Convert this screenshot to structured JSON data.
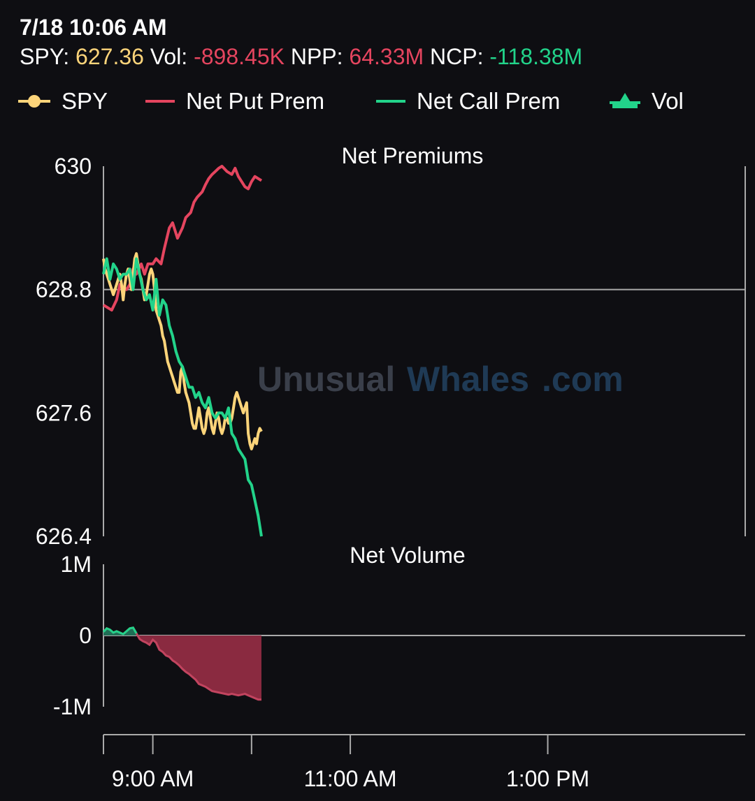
{
  "header": {
    "timestamp": "7/18 10:06 AM",
    "spy_label": "SPY:",
    "spy_value": "627.36",
    "vol_label": "Vol:",
    "vol_value": "-898.45K",
    "npp_label": "NPP:",
    "npp_value": "64.33M",
    "ncp_label": "NCP:",
    "ncp_value": "-118.38M"
  },
  "legend": [
    {
      "name": "SPY",
      "color": "#fcd47a",
      "icon": "dot-line"
    },
    {
      "name": "Net Put Prem",
      "color": "#e5455f",
      "icon": "line"
    },
    {
      "name": "Net Call Prem",
      "color": "#22d38a",
      "icon": "line"
    },
    {
      "name": "Vol",
      "color": "#22d38a",
      "icon": "triangle-area"
    }
  ],
  "watermark": {
    "part1": "Unusual",
    "part2": "Whales",
    "part3": ".com"
  },
  "colors": {
    "spy": "#fcd47a",
    "put": "#e5455f",
    "call": "#22d38a",
    "vol_neg": "#8a2a40",
    "vol_pos": "#1f6e55",
    "axis": "#aaaaaa"
  },
  "chart_data": [
    {
      "type": "line",
      "title": "Net Premiums",
      "ylim": [
        626.4,
        630
      ],
      "yticks": [
        "630",
        "628.8",
        "627.6",
        "626.4"
      ],
      "x_range_minutes": [
        510,
        900
      ],
      "xlabel": "",
      "ylabel": "",
      "reference_line": 628.8,
      "series": [
        {
          "name": "SPY",
          "x": [
            510,
            511,
            512,
            513,
            514,
            515,
            516,
            517,
            518,
            519,
            520,
            521,
            522,
            523,
            524,
            525,
            526,
            527,
            528,
            529,
            530,
            531,
            532,
            533,
            534,
            535,
            536,
            537,
            538,
            539,
            540,
            541,
            542,
            543,
            544,
            545,
            546,
            547,
            548,
            549,
            550,
            551,
            552,
            553,
            554,
            555,
            556,
            557,
            558,
            559,
            560,
            561,
            562,
            563,
            564,
            565,
            566,
            567,
            568,
            569,
            570,
            571,
            572,
            573,
            574,
            575,
            576,
            577,
            578,
            579,
            580,
            581,
            582,
            583,
            584,
            585,
            586,
            587,
            588,
            589,
            590,
            591,
            592,
            593,
            594,
            595,
            596,
            597,
            598,
            599,
            600,
            601,
            602,
            603,
            604,
            605,
            606
          ],
          "y": [
            629.1,
            629.0,
            628.95,
            628.9,
            628.85,
            628.8,
            628.75,
            628.8,
            628.85,
            628.9,
            628.95,
            628.85,
            628.7,
            628.85,
            628.95,
            629.0,
            628.9,
            628.8,
            628.95,
            629.1,
            629.15,
            629.05,
            628.95,
            628.9,
            628.8,
            628.7,
            628.75,
            628.85,
            628.95,
            629.0,
            628.95,
            628.8,
            628.6,
            628.55,
            628.5,
            628.45,
            628.35,
            628.3,
            628.2,
            628.1,
            628.05,
            628.0,
            627.95,
            627.9,
            627.85,
            627.8,
            627.8,
            628.0,
            628.05,
            627.9,
            627.8,
            627.75,
            627.7,
            627.6,
            627.5,
            627.45,
            627.45,
            627.55,
            627.65,
            627.55,
            627.45,
            627.4,
            627.45,
            627.6,
            627.65,
            627.55,
            627.45,
            627.4,
            627.5,
            627.6,
            627.55,
            627.45,
            627.4,
            627.45,
            627.55,
            627.55,
            627.5,
            627.5,
            627.55,
            627.65,
            627.75,
            627.8,
            627.75,
            627.7,
            627.65,
            627.6,
            627.65,
            627.7,
            627.4,
            627.3,
            627.25,
            627.3,
            627.35,
            627.3,
            627.4,
            627.45,
            627.42
          ]
        },
        {
          "name": "Net Put Prem",
          "x": [
            510,
            515,
            518,
            520,
            524,
            526,
            528,
            530,
            533,
            535,
            537,
            540,
            542,
            545,
            547,
            550,
            552,
            555,
            558,
            560,
            563,
            565,
            567,
            570,
            572,
            574,
            576,
            578,
            580,
            582,
            585,
            588,
            590,
            592,
            594,
            596,
            598,
            600,
            602,
            604,
            606
          ],
          "y": [
            628.65,
            628.6,
            628.7,
            628.85,
            628.8,
            628.85,
            629.0,
            628.95,
            629.05,
            628.95,
            629.05,
            629.05,
            629.1,
            629.05,
            629.2,
            629.4,
            629.45,
            629.3,
            629.4,
            629.5,
            629.55,
            629.65,
            629.7,
            629.75,
            629.82,
            629.88,
            629.92,
            629.95,
            629.98,
            630.0,
            629.95,
            629.92,
            629.98,
            629.9,
            629.85,
            629.8,
            629.78,
            629.85,
            629.9,
            629.88,
            629.86
          ]
        },
        {
          "name": "Net Call Prem",
          "x": [
            510,
            512,
            514,
            516,
            518,
            520,
            522,
            524,
            526,
            528,
            530,
            532,
            534,
            536,
            538,
            540,
            542,
            544,
            546,
            548,
            550,
            552,
            554,
            556,
            558,
            560,
            562,
            564,
            566,
            568,
            570,
            572,
            574,
            576,
            578,
            580,
            582,
            584,
            586,
            588,
            590,
            592,
            594,
            596,
            598,
            600,
            602,
            604,
            606
          ],
          "y": [
            628.95,
            629.1,
            628.9,
            629.05,
            629.0,
            628.9,
            628.95,
            628.95,
            629.0,
            628.8,
            629.1,
            628.95,
            628.8,
            628.7,
            628.75,
            628.6,
            628.9,
            628.55,
            628.7,
            628.65,
            628.45,
            628.35,
            628.2,
            628.1,
            628.05,
            627.95,
            627.85,
            627.85,
            627.75,
            627.8,
            627.7,
            627.65,
            627.75,
            627.6,
            627.55,
            627.6,
            627.6,
            627.55,
            627.65,
            627.4,
            627.35,
            627.25,
            627.2,
            627.15,
            626.95,
            626.9,
            626.75,
            626.6,
            626.4
          ]
        }
      ]
    },
    {
      "type": "area",
      "title": "Net Volume",
      "ylim": [
        -1000000,
        1000000
      ],
      "yticks": [
        "1M",
        "0",
        "-1M"
      ],
      "x_range_minutes": [
        510,
        900
      ],
      "xlabel": "",
      "ylabel": "",
      "series": [
        {
          "name": "Vol",
          "x": [
            510,
            512,
            514,
            516,
            518,
            520,
            522,
            524,
            526,
            528,
            530,
            532,
            534,
            536,
            538,
            540,
            542,
            544,
            546,
            548,
            550,
            552,
            554,
            556,
            558,
            560,
            562,
            564,
            566,
            568,
            570,
            572,
            574,
            576,
            578,
            580,
            582,
            584,
            586,
            588,
            590,
            592,
            594,
            596,
            598,
            600,
            602,
            604,
            606
          ],
          "y": [
            50000,
            100000,
            80000,
            40000,
            60000,
            40000,
            20000,
            60000,
            100000,
            110000,
            30000,
            -50000,
            -80000,
            -100000,
            -130000,
            -60000,
            -100000,
            -200000,
            -230000,
            -280000,
            -300000,
            -350000,
            -380000,
            -420000,
            -470000,
            -510000,
            -540000,
            -580000,
            -620000,
            -680000,
            -700000,
            -720000,
            -750000,
            -780000,
            -790000,
            -800000,
            -810000,
            -820000,
            -830000,
            -820000,
            -830000,
            -840000,
            -830000,
            -820000,
            -840000,
            -860000,
            -880000,
            -900000,
            -900000
          ]
        }
      ]
    }
  ],
  "x_axis": {
    "ticks": [
      {
        "minute": 540,
        "label": "9:00 AM"
      },
      {
        "minute": 600,
        "label": ""
      },
      {
        "minute": 660,
        "label": "11:00 AM"
      },
      {
        "minute": 780,
        "label": "1:00 PM"
      }
    ]
  }
}
